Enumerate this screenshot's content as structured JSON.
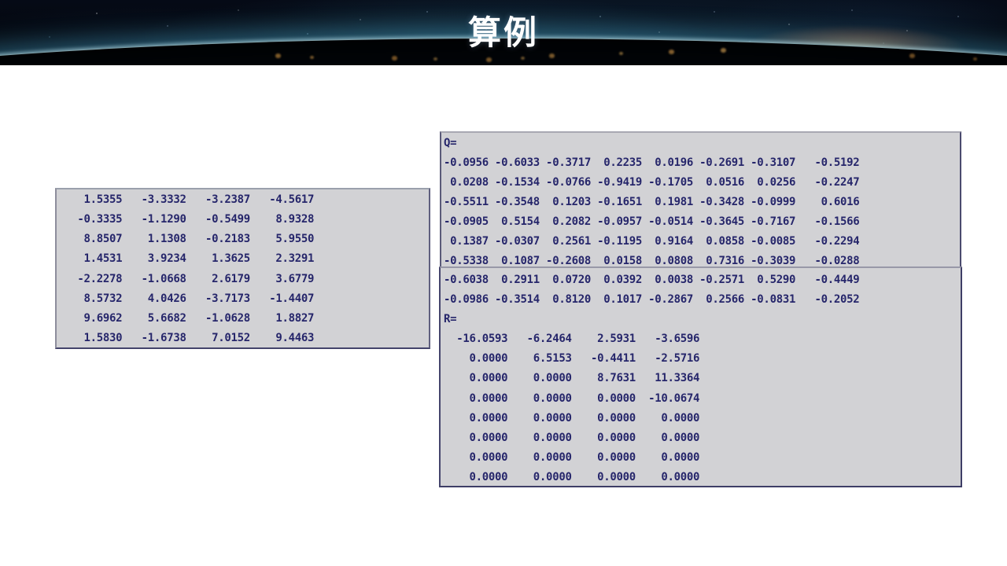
{
  "slide": {
    "title": "算例"
  },
  "colors": {
    "panel_background": "#d2d2d5",
    "matrix_text": "#26266b",
    "header_background": "#04070f",
    "title_text": "#ffffff",
    "sun_glow": "#e8a050"
  },
  "matrices": {
    "input": {
      "rows": [
        [
          "1.5355",
          "-3.3332",
          "-3.2387",
          "-4.5617"
        ],
        [
          "-0.3335",
          "-1.1290",
          "-0.5499",
          "8.9328"
        ],
        [
          "8.8507",
          "1.1308",
          "-0.2183",
          "5.9550"
        ],
        [
          "1.4531",
          "3.9234",
          "1.3625",
          "2.3291"
        ],
        [
          "-2.2278",
          "-1.0668",
          "2.6179",
          "3.6779"
        ],
        [
          "8.5732",
          "4.0426",
          "-3.7173",
          "-1.4407"
        ],
        [
          "9.6962",
          "5.6682",
          "-1.0628",
          "1.8827"
        ],
        [
          "1.5830",
          "-1.6738",
          "7.0152",
          "9.4463"
        ]
      ]
    },
    "q": {
      "label": "Q=",
      "rows": [
        [
          "-0.0956",
          "-0.6033",
          "-0.3717",
          "0.2235",
          "0.0196",
          "-0.2691",
          "-0.3107",
          "-0.5192"
        ],
        [
          "0.0208",
          "-0.1534",
          "-0.0766",
          "-0.9419",
          "-0.1705",
          "0.0516",
          "0.0256",
          "-0.2247"
        ],
        [
          "-0.5511",
          "-0.3548",
          "0.1203",
          "-0.1651",
          "0.1981",
          "-0.3428",
          "-0.0999",
          "0.6016"
        ],
        [
          "-0.0905",
          "0.5154",
          "0.2082",
          "-0.0957",
          "-0.0514",
          "-0.3645",
          "-0.7167",
          "-0.1566"
        ],
        [
          "0.1387",
          "-0.0307",
          "0.2561",
          "-0.1195",
          "0.9164",
          "0.0858",
          "-0.0085",
          "-0.2294"
        ],
        [
          "-0.5338",
          "0.1087",
          "-0.2608",
          "0.0158",
          "0.0808",
          "0.7316",
          "-0.3039",
          "-0.0288"
        ],
        [
          "-0.6038",
          "0.2911",
          "0.0720",
          "0.0392",
          "0.0038",
          "-0.2571",
          "0.5290",
          "-0.4449"
        ],
        [
          "-0.0986",
          "-0.3514",
          "0.8120",
          "0.1017",
          "-0.2867",
          "0.2566",
          "-0.0831",
          "-0.2052"
        ]
      ]
    },
    "r": {
      "label": "R=",
      "rows": [
        [
          "-16.0593",
          "-6.2464",
          "2.5931",
          "-3.6596"
        ],
        [
          "0.0000",
          "6.5153",
          "-0.4411",
          "-2.5716"
        ],
        [
          "0.0000",
          "0.0000",
          "8.7631",
          "11.3364"
        ],
        [
          "0.0000",
          "0.0000",
          "0.0000",
          "-10.0674"
        ],
        [
          "0.0000",
          "0.0000",
          "0.0000",
          "0.0000"
        ],
        [
          "0.0000",
          "0.0000",
          "0.0000",
          "0.0000"
        ],
        [
          "0.0000",
          "0.0000",
          "0.0000",
          "0.0000"
        ],
        [
          "0.0000",
          "0.0000",
          "0.0000",
          "0.0000"
        ]
      ]
    }
  }
}
